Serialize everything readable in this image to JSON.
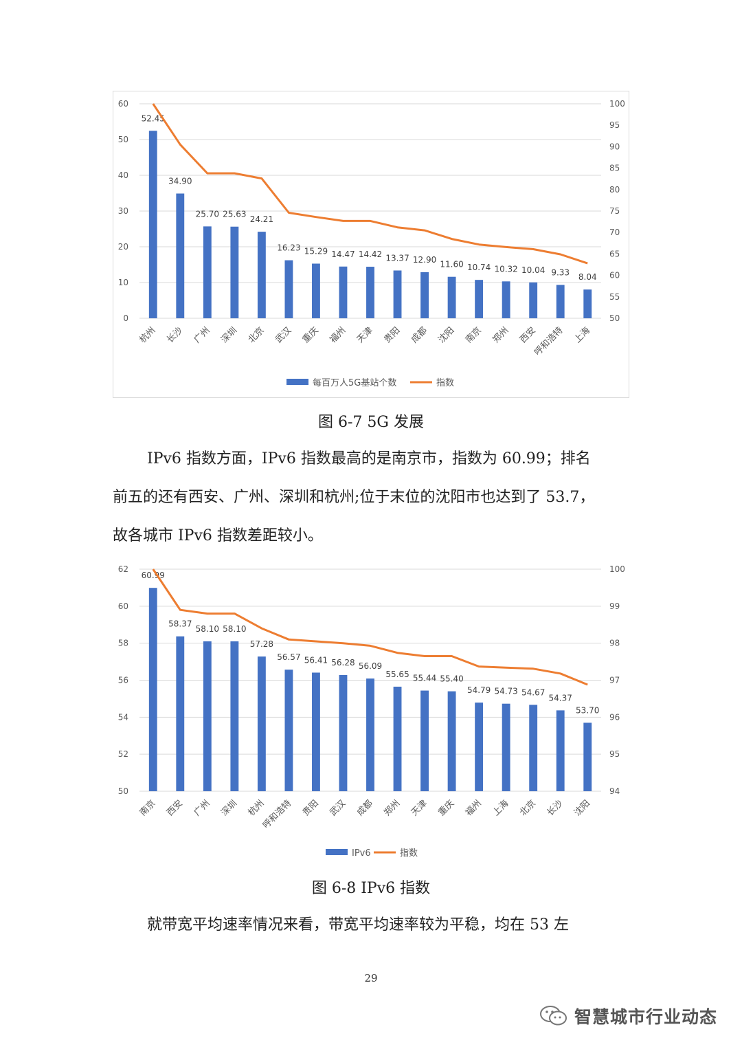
{
  "figure1": {
    "caption": "图 6-7 5G 发展",
    "chart_data": {
      "type": "bar",
      "categories": [
        "杭州",
        "长沙",
        "广州",
        "深圳",
        "北京",
        "武汉",
        "重庆",
        "福州",
        "天津",
        "贵阳",
        "成都",
        "沈阳",
        "南京",
        "郑州",
        "西安",
        "呼和浩特",
        "上海"
      ],
      "series": [
        {
          "name": "每百万人5G基站个数",
          "type": "bar",
          "axis": "left",
          "values": [
            52.45,
            34.9,
            25.7,
            25.63,
            24.21,
            16.23,
            15.29,
            14.47,
            14.42,
            13.37,
            12.9,
            11.6,
            10.74,
            10.32,
            10.04,
            9.33,
            8.04
          ],
          "labels": [
            "52.45",
            "34.90",
            "25.70",
            "25.63",
            "24.21",
            "16.23",
            "15.29",
            "14.47",
            "14.42",
            "13.37",
            "12.90",
            "11.60",
            "10.74",
            "10.32",
            "10.04",
            "9.33",
            "8.04"
          ],
          "color": "#4472C4"
        },
        {
          "name": "指数",
          "type": "line",
          "axis": "right",
          "values": [
            100,
            90.5,
            83.8,
            83.8,
            82.6,
            74.6,
            73.6,
            72.7,
            72.7,
            71.2,
            70.5,
            68.5,
            67.2,
            66.6,
            66.1,
            64.9,
            62.8
          ],
          "color": "#ED7D31"
        }
      ],
      "ylim": [
        0,
        60
      ],
      "yticks": [
        "0",
        "10",
        "20",
        "30",
        "40",
        "50",
        "60"
      ],
      "y2lim": [
        50,
        100
      ],
      "y2ticks": [
        "50",
        "55",
        "60",
        "65",
        "70",
        "75",
        "80",
        "85",
        "90",
        "95",
        "100"
      ],
      "legend": "bottom",
      "grid": true
    }
  },
  "paragraph1": {
    "line1": "IPv6 指数方面，IPv6 指数最高的是南京市，指数为 60.99；排名",
    "line2": "前五的还有西安、广州、深圳和杭州;位于末位的沈阳市也达到了 53.7，",
    "line3": "故各城市 IPv6 指数差距较小。"
  },
  "figure2": {
    "caption": "图 6-8 IPv6 指数",
    "chart_data": {
      "type": "bar",
      "categories": [
        "南京",
        "西安",
        "广州",
        "深圳",
        "杭州",
        "呼和浩特",
        "贵阳",
        "武汉",
        "成都",
        "郑州",
        "天津",
        "重庆",
        "福州",
        "上海",
        "北京",
        "长沙",
        "沈阳"
      ],
      "series": [
        {
          "name": "IPv6",
          "type": "bar",
          "axis": "left",
          "values": [
            60.99,
            58.37,
            58.1,
            58.1,
            57.28,
            56.57,
            56.41,
            56.28,
            56.09,
            55.65,
            55.44,
            55.4,
            54.79,
            54.73,
            54.67,
            54.37,
            53.7
          ],
          "labels": [
            "60.99",
            "58.37",
            "58.10",
            "58.10",
            "57.28",
            "56.57",
            "56.41",
            "56.28",
            "56.09",
            "55.65",
            "55.44",
            "55.40",
            "54.79",
            "54.73",
            "54.67",
            "54.37",
            "53.70"
          ],
          "color": "#4472C4"
        },
        {
          "name": "指数",
          "type": "line",
          "axis": "right",
          "values": [
            100,
            98.9,
            98.8,
            98.8,
            98.4,
            98.1,
            98.05,
            98.0,
            97.93,
            97.74,
            97.65,
            97.65,
            97.37,
            97.34,
            97.31,
            97.18,
            96.88
          ],
          "color": "#ED7D31"
        }
      ],
      "ylim": [
        50,
        62
      ],
      "yticks": [
        "50",
        "52",
        "54",
        "56",
        "58",
        "60",
        "62"
      ],
      "y2lim": [
        94,
        100
      ],
      "y2ticks": [
        "94",
        "95",
        "96",
        "97",
        "98",
        "99",
        "100"
      ],
      "legend": "bottom",
      "grid": true
    }
  },
  "paragraph2": {
    "line1": "就带宽平均速率情况来看，带宽平均速率较为平稳，均在 53 左"
  },
  "page_number": "29",
  "watermark": {
    "text": "智慧城市行业动态",
    "icon": "wechat-icon"
  }
}
